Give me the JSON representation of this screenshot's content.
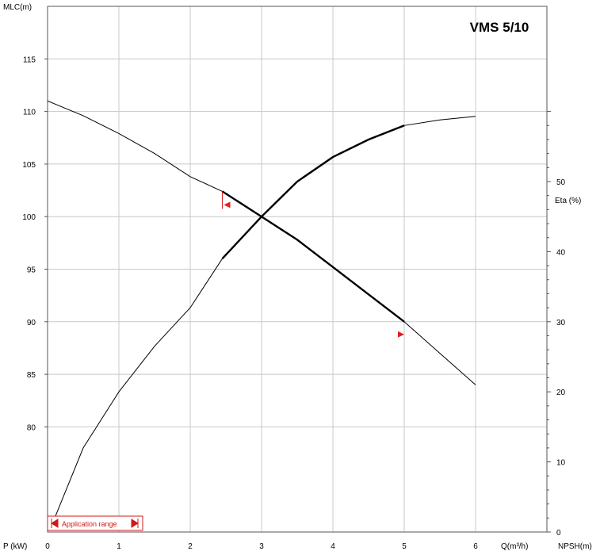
{
  "chart_data": {
    "type": "line",
    "title": "VMS 5/10",
    "x_axis": {
      "label": "Q(m³/h)",
      "range": [
        0,
        7
      ],
      "ticks": [
        0,
        1,
        2,
        3,
        4,
        5,
        6
      ],
      "tick_labels": [
        "0",
        "1",
        "2",
        "3",
        "4",
        "5",
        "6"
      ],
      "grid": true
    },
    "y_left": {
      "label": "MLC(m)",
      "range": [
        70,
        120
      ],
      "ticks": [
        80,
        85,
        90,
        95,
        100,
        105,
        110,
        115
      ],
      "tick_labels": [
        "80",
        "85",
        "90",
        "95",
        "100",
        "105",
        "110",
        "115"
      ],
      "grid": true
    },
    "y_right": {
      "label": "Eta (%)",
      "range": [
        0,
        75
      ],
      "ticks": [
        0,
        10,
        20,
        30,
        40,
        50
      ],
      "tick_labels": [
        "0",
        "10",
        "20",
        "30",
        "40",
        "50"
      ]
    },
    "bottom_left_label": "P (kW)",
    "bottom_right_label": "NPSH(m)",
    "series": [
      {
        "axis": "left",
        "x": [
          0,
          0.5,
          1.0,
          1.5,
          2.0,
          2.45,
          3.0,
          3.5,
          4.0,
          4.5,
          5.0,
          5.5,
          6.0
        ],
        "y": [
          111.0,
          109.6,
          107.9,
          106.0,
          103.8,
          102.4,
          100.0,
          97.8,
          95.2,
          92.6,
          90.0,
          87.0,
          84.0
        ]
      },
      {
        "axis": "right",
        "x": [
          0.1,
          0.5,
          1.0,
          1.5,
          2.0,
          2.45,
          3.0,
          3.5,
          4.0,
          4.5,
          5.0,
          5.5,
          6.0
        ],
        "y": [
          2,
          12,
          20,
          26.5,
          32,
          39,
          45,
          50,
          53.5,
          56,
          58,
          58.8,
          59.3
        ]
      }
    ],
    "application_range": {
      "label": "Application range",
      "q_min": 2.45,
      "q_max": 5.0
    },
    "colors": {
      "grid": "#c8c8c8",
      "curve": "#000000",
      "marker": "#e02020"
    }
  }
}
